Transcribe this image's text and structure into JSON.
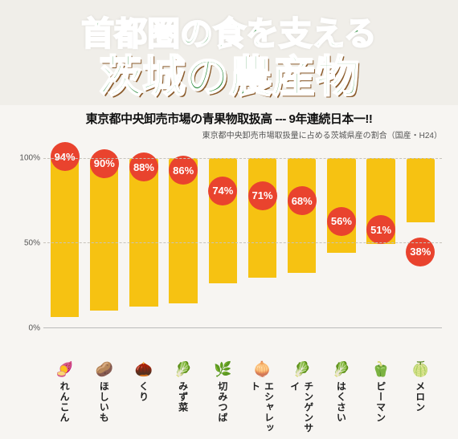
{
  "header": {
    "line1": "首都圏の食を支える",
    "line2": "茨城の農産物"
  },
  "subtitle": "東京都中央卸売市場の青果物取扱高 --- 9年連続日本一!!",
  "note": "東京都中央卸売市場取扱量に占める茨城県産の割合（国産・H24）",
  "chart": {
    "type": "bar",
    "ylim": [
      0,
      100
    ],
    "yticks": [
      0,
      50,
      100
    ],
    "ytick_labels": [
      "0%",
      "50%",
      "100%"
    ],
    "bar_color": "#f6c212",
    "bubble_color": "#e9432e",
    "grid_color": "#c7c3bb",
    "background_color": "#f7f5f2",
    "bar_width": 0.8,
    "items": [
      {
        "label": "れんこん",
        "value": 94,
        "pct": "94%",
        "icon": "🍠"
      },
      {
        "label": "ほしいも",
        "value": 90,
        "pct": "90%",
        "icon": "🥔"
      },
      {
        "label": "くり",
        "value": 88,
        "pct": "88%",
        "icon": "🌰"
      },
      {
        "label": "みず菜",
        "value": 86,
        "pct": "86%",
        "icon": "🥬"
      },
      {
        "label": "切みつば",
        "value": 74,
        "pct": "74%",
        "icon": "🌿"
      },
      {
        "label": "エシャレット",
        "value": 71,
        "pct": "71%",
        "icon": "🧅"
      },
      {
        "label": "チンゲンサイ",
        "value": 68,
        "pct": "68%",
        "icon": "🥬"
      },
      {
        "label": "はくさい",
        "value": 56,
        "pct": "56%",
        "icon": "🥬"
      },
      {
        "label": "ピーマン",
        "value": 51,
        "pct": "51%",
        "icon": "🫑"
      },
      {
        "label": "メロン",
        "value": 38,
        "pct": "38%",
        "icon": "🍈"
      }
    ]
  }
}
